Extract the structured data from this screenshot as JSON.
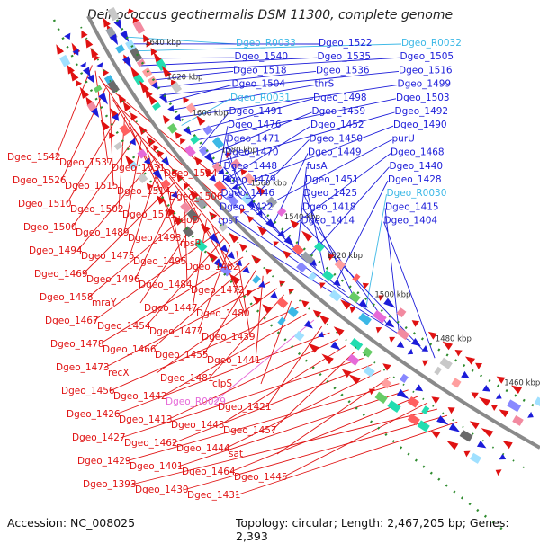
{
  "title": "Deinococcus geothermalis DSM 11300, complete genome",
  "footer": {
    "accession": "Accession: NC_008025",
    "topology": "Topology: circular; Length: 2,467,205 bp; Genes: 2,393"
  },
  "colors": {
    "forward_gene": "#1c1cd9",
    "reverse_gene": "#e01212",
    "rna_gene": "#3cb8e6",
    "pseudo_gene": "#e66ad8",
    "backbone": "#888888",
    "ruler_dots": "#2e8b2e"
  },
  "kbp_ticks": [
    "1640 kbp",
    "1620 kbp",
    "1600 kbp",
    "1580 kbp",
    "1560 kbp",
    "1540 kbp",
    "1520 kbp",
    "1500 kbp",
    "1480 kbp",
    "1460 kbp"
  ],
  "right_labels": [
    {
      "text": "Dgeo_R0033",
      "kind": "rna"
    },
    {
      "text": "Dgeo_1522",
      "kind": "fwd"
    },
    {
      "text": "Dgeo_R0032",
      "kind": "rna"
    },
    {
      "text": "Dgeo_1540",
      "kind": "fwd"
    },
    {
      "text": "Dgeo_1535",
      "kind": "fwd"
    },
    {
      "text": "Dgeo_1505",
      "kind": "fwd"
    },
    {
      "text": "Dgeo_1518",
      "kind": "fwd"
    },
    {
      "text": "Dgeo_1536",
      "kind": "fwd"
    },
    {
      "text": "Dgeo_1516",
      "kind": "fwd"
    },
    {
      "text": "Dgeo_1504",
      "kind": "fwd"
    },
    {
      "text": "thrS",
      "kind": "fwd"
    },
    {
      "text": "Dgeo_1499",
      "kind": "fwd"
    },
    {
      "text": "Dgeo_R0031",
      "kind": "rna"
    },
    {
      "text": "Dgeo_1498",
      "kind": "fwd"
    },
    {
      "text": "Dgeo_1503",
      "kind": "fwd"
    },
    {
      "text": "Dgeo_1491",
      "kind": "fwd"
    },
    {
      "text": "Dgeo_1459",
      "kind": "fwd"
    },
    {
      "text": "Dgeo_1492",
      "kind": "fwd"
    },
    {
      "text": "Dgeo_1476",
      "kind": "fwd"
    },
    {
      "text": "Dgeo_1452",
      "kind": "fwd"
    },
    {
      "text": "Dgeo_1490",
      "kind": "fwd"
    },
    {
      "text": "Dgeo_1471",
      "kind": "fwd"
    },
    {
      "text": "Dgeo_1450",
      "kind": "fwd"
    },
    {
      "text": "purU",
      "kind": "fwd"
    },
    {
      "text": "Dgeo_1470",
      "kind": "fwd"
    },
    {
      "text": "Dgeo_1449",
      "kind": "fwd"
    },
    {
      "text": "Dgeo_1468",
      "kind": "fwd"
    },
    {
      "text": "Dgeo_1448",
      "kind": "fwd"
    },
    {
      "text": "fusA",
      "kind": "fwd"
    },
    {
      "text": "Dgeo_1440",
      "kind": "fwd"
    },
    {
      "text": "Dgeo_1479",
      "kind": "fwd"
    },
    {
      "text": "Dgeo_1451",
      "kind": "fwd"
    },
    {
      "text": "Dgeo_1428",
      "kind": "fwd"
    },
    {
      "text": "Dgeo_1446",
      "kind": "fwd"
    },
    {
      "text": "Dgeo_1425",
      "kind": "fwd"
    },
    {
      "text": "Dgeo_R0030",
      "kind": "rna"
    },
    {
      "text": "Dgeo_1422",
      "kind": "fwd"
    },
    {
      "text": "Dgeo_1418",
      "kind": "fwd"
    },
    {
      "text": "Dgeo_1415",
      "kind": "fwd"
    },
    {
      "text": "rpsT",
      "kind": "fwd"
    },
    {
      "text": "Dgeo_1414",
      "kind": "fwd"
    },
    {
      "text": "Dgeo_1404",
      "kind": "fwd"
    }
  ],
  "left_labels": [
    {
      "text": "Dgeo_1542",
      "kind": "rev"
    },
    {
      "text": "Dgeo_1537",
      "kind": "rev"
    },
    {
      "text": "Dgeo_1531",
      "kind": "rev"
    },
    {
      "text": "Dgeo_1524",
      "kind": "rev"
    },
    {
      "text": "Dgeo_1526",
      "kind": "rev"
    },
    {
      "text": "Dgeo_1515",
      "kind": "rev"
    },
    {
      "text": "Dgeo_1514",
      "kind": "rev"
    },
    {
      "text": "Dgeo_1506",
      "kind": "rev"
    },
    {
      "text": "Dgeo_1510",
      "kind": "rev"
    },
    {
      "text": "Dgeo_1502",
      "kind": "rev"
    },
    {
      "text": "Dgeo_1511",
      "kind": "rev"
    },
    {
      "text": "deoD",
      "kind": "rev"
    },
    {
      "text": "Dgeo_1500",
      "kind": "rev"
    },
    {
      "text": "Dgeo_1489",
      "kind": "rev"
    },
    {
      "text": "Dgeo_1493",
      "kind": "rev"
    },
    {
      "text": "rpsP",
      "kind": "rev"
    },
    {
      "text": "Dgeo_1494",
      "kind": "rev"
    },
    {
      "text": "Dgeo_1475",
      "kind": "rev"
    },
    {
      "text": "Dgeo_1495",
      "kind": "rev"
    },
    {
      "text": "Dgeo_1482",
      "kind": "rev"
    },
    {
      "text": "Dgeo_1469",
      "kind": "rev"
    },
    {
      "text": "Dgeo_1496",
      "kind": "rev"
    },
    {
      "text": "Dgeo_1484",
      "kind": "rev"
    },
    {
      "text": "Dgeo_1472",
      "kind": "rev"
    },
    {
      "text": "Dgeo_1458",
      "kind": "rev"
    },
    {
      "text": "mraY",
      "kind": "rev"
    },
    {
      "text": "Dgeo_1447",
      "kind": "rev"
    },
    {
      "text": "Dgeo_1480",
      "kind": "rev"
    },
    {
      "text": "Dgeo_1467",
      "kind": "rev"
    },
    {
      "text": "Dgeo_1454",
      "kind": "rev"
    },
    {
      "text": "Dgeo_1477",
      "kind": "rev"
    },
    {
      "text": "Dgeo_1439",
      "kind": "rev"
    },
    {
      "text": "Dgeo_1478",
      "kind": "rev"
    },
    {
      "text": "Dgeo_1466",
      "kind": "rev"
    },
    {
      "text": "Dgeo_1455",
      "kind": "rev"
    },
    {
      "text": "Dgeo_1441",
      "kind": "rev"
    },
    {
      "text": "Dgeo_1473",
      "kind": "rev"
    },
    {
      "text": "recX",
      "kind": "rev"
    },
    {
      "text": "Dgeo_1481",
      "kind": "rev"
    },
    {
      "text": "clpS",
      "kind": "rev"
    },
    {
      "text": "Dgeo_1456",
      "kind": "rev"
    },
    {
      "text": "Dgeo_1442",
      "kind": "rev"
    },
    {
      "text": "Dgeo_R0029",
      "kind": "pseudo"
    },
    {
      "text": "Dgeo_1421",
      "kind": "rev"
    },
    {
      "text": "Dgeo_1426",
      "kind": "rev"
    },
    {
      "text": "Dgeo_1413",
      "kind": "rev"
    },
    {
      "text": "Dgeo_1443",
      "kind": "rev"
    },
    {
      "text": "Dgeo_1457",
      "kind": "rev"
    },
    {
      "text": "Dgeo_1427",
      "kind": "rev"
    },
    {
      "text": "Dgeo_1462",
      "kind": "rev"
    },
    {
      "text": "Dgeo_1444",
      "kind": "rev"
    },
    {
      "text": "sat",
      "kind": "rev"
    },
    {
      "text": "Dgeo_1429",
      "kind": "rev"
    },
    {
      "text": "Dgeo_1401",
      "kind": "rev"
    },
    {
      "text": "Dgeo_1464",
      "kind": "rev"
    },
    {
      "text": "Dgeo_1445",
      "kind": "rev"
    },
    {
      "text": "Dgeo_1393",
      "kind": "rev"
    },
    {
      "text": "Dgeo_1430",
      "kind": "rev"
    },
    {
      "text": "Dgeo_1431",
      "kind": "rev"
    }
  ]
}
